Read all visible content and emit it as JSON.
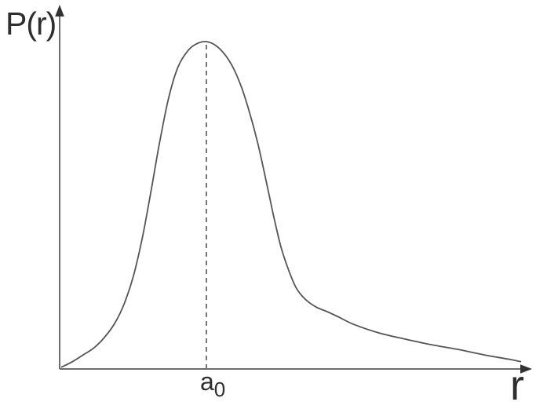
{
  "figure": {
    "ylabel": "P(r)",
    "xlabel": "r",
    "peak_label": {
      "base": "a",
      "sub": "0"
    },
    "background": "#ffffff",
    "colors": {
      "curve": "#555555",
      "axis": "#6e6e6e",
      "arrow": "#333333",
      "dashed_line": "#555555",
      "text": "#2e2e2e"
    }
  },
  "chart_data": {
    "type": "line",
    "title": "",
    "xlabel": "r",
    "ylabel": "P(r)",
    "grid": false,
    "legend": false,
    "x_axis": {
      "ticks": [],
      "unit": "a0",
      "lim": [
        0,
        3.25
      ]
    },
    "y_axis": {
      "ticks": [],
      "lim": [
        0,
        1.05
      ]
    },
    "peak": {
      "x": 1.0,
      "y": 1.0,
      "label": "a0"
    },
    "annotations": [
      {
        "type": "dashed_vline",
        "x": 1.0,
        "from_y": 0,
        "to_y": 1.0,
        "label": "a0"
      }
    ],
    "series": [
      {
        "name": "P(r)",
        "points": [
          [
            0.0,
            0.005
          ],
          [
            0.076,
            0.022
          ],
          [
            0.151,
            0.043
          ],
          [
            0.227,
            0.065
          ],
          [
            0.297,
            0.096
          ],
          [
            0.368,
            0.139
          ],
          [
            0.432,
            0.197
          ],
          [
            0.497,
            0.283
          ],
          [
            0.562,
            0.408
          ],
          [
            0.622,
            0.552
          ],
          [
            0.681,
            0.7
          ],
          [
            0.741,
            0.83
          ],
          [
            0.805,
            0.923
          ],
          [
            0.876,
            0.974
          ],
          [
            0.941,
            0.995
          ],
          [
            1.0,
            1.0
          ],
          [
            1.065,
            0.988
          ],
          [
            1.13,
            0.959
          ],
          [
            1.189,
            0.916
          ],
          [
            1.243,
            0.859
          ],
          [
            1.297,
            0.784
          ],
          [
            1.351,
            0.695
          ],
          [
            1.405,
            0.588
          ],
          [
            1.459,
            0.475
          ],
          [
            1.514,
            0.372
          ],
          [
            1.568,
            0.3
          ],
          [
            1.622,
            0.245
          ],
          [
            1.686,
            0.211
          ],
          [
            1.757,
            0.189
          ],
          [
            1.832,
            0.175
          ],
          [
            1.914,
            0.158
          ],
          [
            2.011,
            0.137
          ],
          [
            2.189,
            0.11
          ],
          [
            2.373,
            0.091
          ],
          [
            2.551,
            0.074
          ],
          [
            2.73,
            0.06
          ],
          [
            2.914,
            0.043
          ],
          [
            3.092,
            0.029
          ],
          [
            3.168,
            0.022
          ]
        ]
      }
    ]
  }
}
